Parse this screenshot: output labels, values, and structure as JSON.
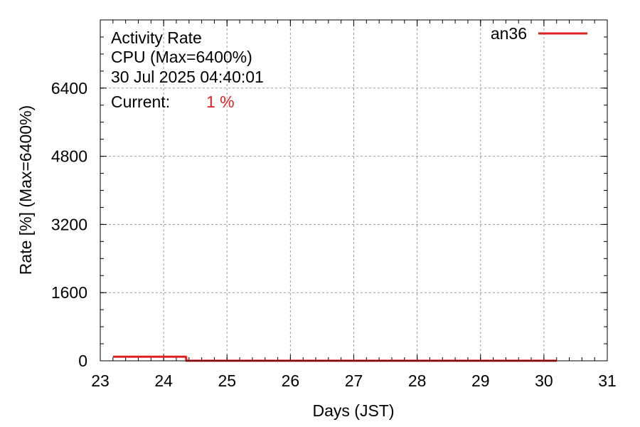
{
  "chart_data": {
    "type": "line",
    "title_lines": [
      "Activity Rate",
      "CPU (Max=6400%)",
      "30 Jul 2025 04:40:01"
    ],
    "current": {
      "label": "Current:",
      "value": "1 %"
    },
    "xlabel": "Days (JST)",
    "ylabel": "Rate [%]  (Max=6400%)",
    "xlim": [
      23,
      31
    ],
    "ylim": [
      0,
      8000
    ],
    "xticks": [
      23,
      24,
      25,
      26,
      27,
      28,
      29,
      30,
      31
    ],
    "yticks": [
      0,
      1600,
      3200,
      4800,
      6400
    ],
    "grid": true,
    "legend_position": "top-right",
    "series": [
      {
        "name": "an36",
        "color": "#e02020",
        "x": [
          23.2,
          23.5,
          23.8,
          24.1,
          24.35,
          24.36,
          25,
          26,
          27,
          28,
          29,
          30,
          30.2
        ],
        "y": [
          95,
          95,
          95,
          95,
          95,
          2,
          1,
          1,
          1,
          1,
          1,
          1,
          1
        ]
      }
    ]
  }
}
